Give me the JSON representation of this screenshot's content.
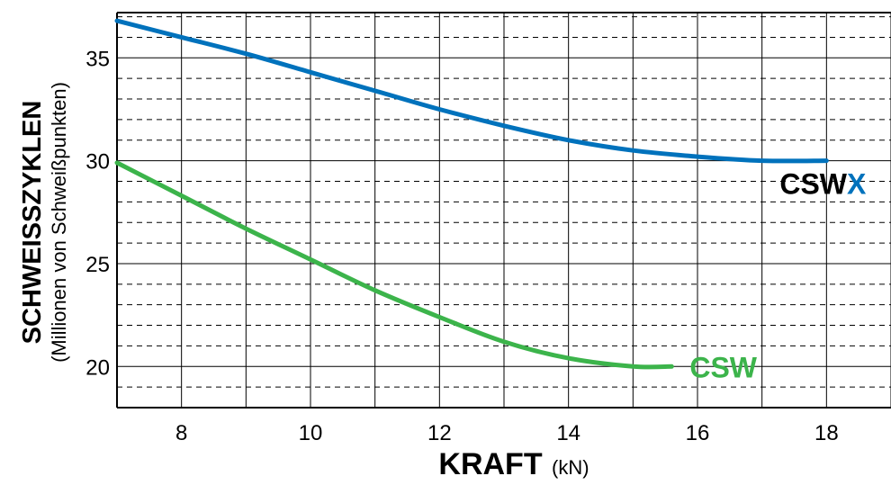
{
  "chart_data": {
    "type": "line",
    "xlabel": "KRAFT",
    "xunit": "(kN)",
    "ylabel": "SCHWEISSZYKLEN",
    "ylabel_sub": "(Millionen von Schweißpunkten)",
    "xlim": [
      7,
      19
    ],
    "ylim": [
      18,
      37.2
    ],
    "x_ticks": [
      8,
      10,
      12,
      14,
      16,
      18
    ],
    "y_ticks": [
      20,
      25,
      30,
      35
    ],
    "grid": true,
    "series": [
      {
        "name": "CSWX",
        "name_main": "CSW",
        "name_accent": "X",
        "color": "#0072bc",
        "accent_color": "#0072bc",
        "label_color": "#000000",
        "x": [
          7,
          8,
          9,
          10,
          11,
          12,
          13,
          14,
          15,
          16,
          17,
          18
        ],
        "y": [
          36.8,
          36.0,
          35.2,
          34.3,
          33.4,
          32.5,
          31.7,
          31.0,
          30.5,
          30.2,
          30.0,
          30.0
        ]
      },
      {
        "name": "CSW",
        "name_main": "CSW",
        "name_accent": "",
        "color": "#3cb44b",
        "accent_color": "#3cb44b",
        "label_color": "#3cb44b",
        "x": [
          7,
          8,
          9,
          10,
          11,
          12,
          13,
          14,
          15,
          15.6
        ],
        "y": [
          29.9,
          28.3,
          26.7,
          25.2,
          23.7,
          22.4,
          21.2,
          20.4,
          20.0,
          20.0
        ]
      }
    ]
  }
}
